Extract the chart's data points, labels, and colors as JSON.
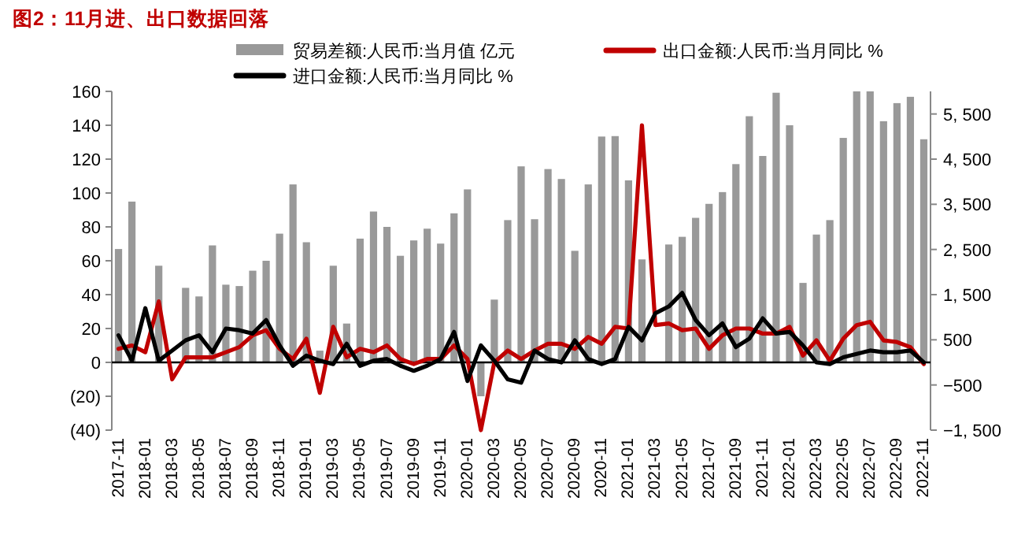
{
  "chart_data": {
    "type": "bar",
    "title": "图2：11月进、出口数据回落",
    "categories": [
      "2017-11",
      null,
      "2018-01",
      null,
      "2018-03",
      null,
      "2018-05",
      null,
      "2018-07",
      null,
      "2018-09",
      null,
      "2018-11",
      null,
      "2019-01",
      null,
      "2019-03",
      null,
      "2019-05",
      null,
      "2019-07",
      null,
      "2019-09",
      null,
      "2019-11",
      null,
      "2020-01",
      null,
      "2020-03",
      null,
      "2020-05",
      null,
      "2020-07",
      null,
      "2020-09",
      null,
      "2020-11",
      null,
      "2021-01",
      null,
      "2021-03",
      null,
      "2021-05",
      null,
      "2021-07",
      null,
      "2021-09",
      null,
      "2021-11",
      null,
      "2022-01",
      null,
      "2022-03",
      null,
      "2022-05",
      null,
      "2022-07",
      null,
      "2022-09",
      null,
      "2022-11"
    ],
    "series": [
      {
        "name": "贸易差额:人民币:当月值 亿元",
        "axis": "y2",
        "color": "#999999",
        "values": [
          2510,
          3560,
          null,
          2140,
          null,
          1650,
          1460,
          2590,
          1720,
          1690,
          2030,
          2250,
          2850,
          3940,
          2660,
          260,
          2140,
          860,
          2740,
          3340,
          3000,
          2360,
          2700,
          2960,
          2630,
          3300,
          3830,
          -750,
          1390,
          3150,
          4340,
          3170,
          4280,
          4060,
          2470,
          3940,
          5000,
          5010,
          4030,
          2280,
          null,
          2610,
          2780,
          3200,
          3510,
          3770,
          4390,
          5450,
          4570,
          5970,
          5250,
          1760,
          2830,
          3150,
          4970,
          6000,
          6000,
          5340,
          5740,
          5880,
          4940
        ]
      },
      {
        "name": "出口金额:人民币:当月同比 %",
        "type": "line",
        "color": "#c00000",
        "values": [
          8,
          10,
          6,
          36,
          -10,
          3,
          3,
          3,
          6,
          9,
          16,
          19,
          8,
          2,
          14,
          -18,
          21,
          3,
          8,
          6,
          10,
          2,
          -1,
          2,
          2,
          10,
          2,
          -40,
          0,
          7,
          2,
          7,
          11,
          11,
          8,
          15,
          11,
          21,
          20,
          140,
          22,
          23,
          19,
          20,
          8,
          16,
          20,
          20,
          17,
          17,
          21,
          4,
          13,
          1,
          14,
          22,
          24,
          13,
          12,
          9,
          -1
        ]
      },
      {
        "name": "进口金额:人民币:当月同比 %",
        "type": "line",
        "color": "#000000",
        "values": [
          16,
          1,
          32,
          1,
          7,
          13,
          16,
          6,
          20,
          19,
          17,
          25,
          10,
          -2,
          4,
          1,
          -1,
          11,
          -2,
          1,
          2,
          -2,
          -5,
          -2,
          2,
          18,
          -11,
          10,
          1,
          -10,
          -12,
          7,
          2,
          0,
          13,
          2,
          -1,
          2,
          21,
          13,
          29,
          33,
          41,
          25,
          16,
          23,
          9,
          14,
          26,
          17,
          18,
          10,
          0,
          -1,
          3,
          5,
          7,
          6,
          6,
          7,
          0
        ]
      }
    ],
    "ylim": [
      -40,
      160
    ],
    "yticks": [
      {
        "value": -40,
        "label": "(40)"
      },
      {
        "value": -20,
        "label": "(20)"
      },
      0,
      20,
      40,
      60,
      80,
      100,
      120,
      140,
      160
    ],
    "y2lim": [
      -1500,
      6000
    ],
    "y2ticks": [
      {
        "value": -1500,
        "label": "−1, 500"
      },
      {
        "value": -500,
        "label": "−500"
      },
      500,
      {
        "value": 1500,
        "label": "1, 500"
      },
      {
        "value": 2500,
        "label": "2, 500"
      },
      {
        "value": 3500,
        "label": "3, 500"
      },
      {
        "value": 4500,
        "label": "4, 500"
      },
      {
        "value": 5500,
        "label": "5, 500"
      }
    ],
    "legend": "top"
  }
}
